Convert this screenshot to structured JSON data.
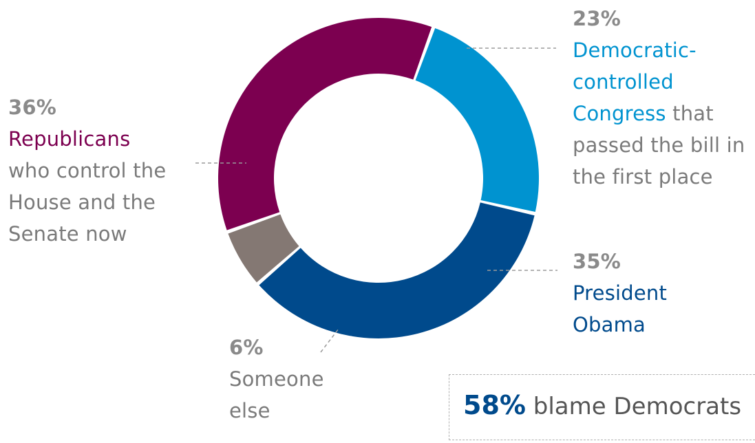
{
  "chart_data": {
    "type": "pie",
    "donut": true,
    "slices": [
      {
        "key": "democratic_congress",
        "value": 23,
        "color": "#0093d0"
      },
      {
        "key": "obama",
        "value": 35,
        "color": "#004a8c"
      },
      {
        "key": "someone_else",
        "value": 6,
        "color": "#847873"
      },
      {
        "key": "republicans",
        "value": 36,
        "color": "#7c0050"
      }
    ],
    "labels": {
      "democratic_congress": {
        "pct": "23%",
        "highlight": "Democratic-\ncontrolled\nCongress",
        "rest": " that\npassed the bill in\nthe first place"
      },
      "obama": {
        "pct": "35%",
        "highlight": "President\nObama",
        "rest": ""
      },
      "someone_else": {
        "pct": "6%",
        "highlight": "",
        "rest": "Someone\nelse"
      },
      "republicans": {
        "pct": "36%",
        "highlight": "Republicans",
        "rest": "\nwho control the\nHouse and the\nSenate now"
      }
    },
    "callout": {
      "pct": "58%",
      "text": " blame Democrats",
      "pct_color": "#004a8c"
    }
  }
}
